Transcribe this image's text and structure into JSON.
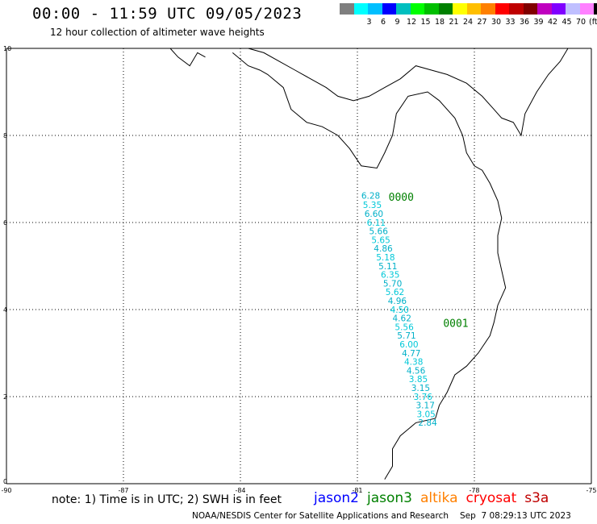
{
  "header": {
    "title": "00:00 - 11:59 UTC 09/05/2023",
    "subtitle": "12 hour collection of altimeter wave heights"
  },
  "legend": {
    "colors": [
      "#7f7f7f",
      "#00ffff",
      "#00bfff",
      "#0000ff",
      "#00bfbf",
      "#00ff00",
      "#00bf00",
      "#008000",
      "#ffff00",
      "#ffbf00",
      "#ff8000",
      "#ff0000",
      "#bf0000",
      "#800000",
      "#bf00bf",
      "#8000ff",
      "#bfbfff",
      "#ff80ff",
      "#000000"
    ],
    "labels": [
      "3",
      "6",
      "9",
      "12",
      "15",
      "18",
      "21",
      "24",
      "27",
      "30",
      "33",
      "36",
      "39",
      "42",
      "45",
      "70"
    ],
    "unit": "(ft)"
  },
  "axes": {
    "x_labels": [
      "-90",
      "-87",
      "-84",
      "-81",
      "-78",
      "-75"
    ],
    "y_labels": [
      "0",
      "2",
      "4",
      "6",
      "8",
      "10"
    ],
    "lon_range": [
      -90,
      -75
    ],
    "lat_range": [
      0,
      10
    ]
  },
  "track": {
    "satellite": "jason3",
    "time_labels": [
      {
        "text": "0000",
        "lon": -80.2,
        "lat": 6.5
      },
      {
        "text": "0001",
        "lon": -78.8,
        "lat": 3.6
      }
    ],
    "points": [
      {
        "lat": 6.55,
        "lon": -80.9,
        "swh": "6.28"
      },
      {
        "lat": 6.33,
        "lon": -80.86,
        "swh": "5.35"
      },
      {
        "lat": 6.13,
        "lon": -80.82,
        "swh": "6.60"
      },
      {
        "lat": 5.93,
        "lon": -80.76,
        "swh": "6.11"
      },
      {
        "lat": 5.73,
        "lon": -80.7,
        "swh": "5.66"
      },
      {
        "lat": 5.53,
        "lon": -80.64,
        "swh": "5.65"
      },
      {
        "lat": 5.33,
        "lon": -80.58,
        "swh": "4.86"
      },
      {
        "lat": 5.13,
        "lon": -80.52,
        "swh": "5.18"
      },
      {
        "lat": 4.93,
        "lon": -80.46,
        "swh": "5.11"
      },
      {
        "lat": 4.73,
        "lon": -80.4,
        "swh": "6.35"
      },
      {
        "lat": 4.53,
        "lon": -80.34,
        "swh": "5.70"
      },
      {
        "lat": 4.33,
        "lon": -80.28,
        "swh": "5.62"
      },
      {
        "lat": 4.13,
        "lon": -80.22,
        "swh": "4.96"
      },
      {
        "lat": 3.93,
        "lon": -80.16,
        "swh": "4.50"
      },
      {
        "lat": 3.73,
        "lon": -80.1,
        "swh": "4.62"
      },
      {
        "lat": 3.53,
        "lon": -80.04,
        "swh": "5.56"
      },
      {
        "lat": 3.33,
        "lon": -79.98,
        "swh": "5.71"
      },
      {
        "lat": 3.13,
        "lon": -79.92,
        "swh": "6.00"
      },
      {
        "lat": 2.93,
        "lon": -79.86,
        "swh": "4.77"
      },
      {
        "lat": 2.73,
        "lon": -79.8,
        "swh": "4.38"
      },
      {
        "lat": 2.53,
        "lon": -79.74,
        "swh": "4.56"
      },
      {
        "lat": 2.33,
        "lon": -79.68,
        "swh": "3.85"
      },
      {
        "lat": 2.13,
        "lon": -79.62,
        "swh": "3.15"
      },
      {
        "lat": 1.93,
        "lon": -79.56,
        "swh": "3.76"
      },
      {
        "lat": 1.73,
        "lon": -79.5,
        "swh": "3.17"
      },
      {
        "lat": 1.53,
        "lon": -79.48,
        "swh": "3.05"
      },
      {
        "lat": 1.33,
        "lon": -79.44,
        "swh": "2.84"
      }
    ]
  },
  "note": "note: 1) Time is in UTC; 2) SWH is in feet",
  "satellites": [
    {
      "name": "jason2",
      "color": "#0000ff"
    },
    {
      "name": "jason3",
      "color": "#008000"
    },
    {
      "name": "altika",
      "color": "#ff8000"
    },
    {
      "name": "cryosat",
      "color": "#ff0000"
    },
    {
      "name": "s3a",
      "color": "#bf0000"
    }
  ],
  "footer": {
    "credit": "NOAA/NESDIS Center for Satellite Applications and Research",
    "timestamp": "Sep  7 08:29:13 UTC 2023"
  }
}
